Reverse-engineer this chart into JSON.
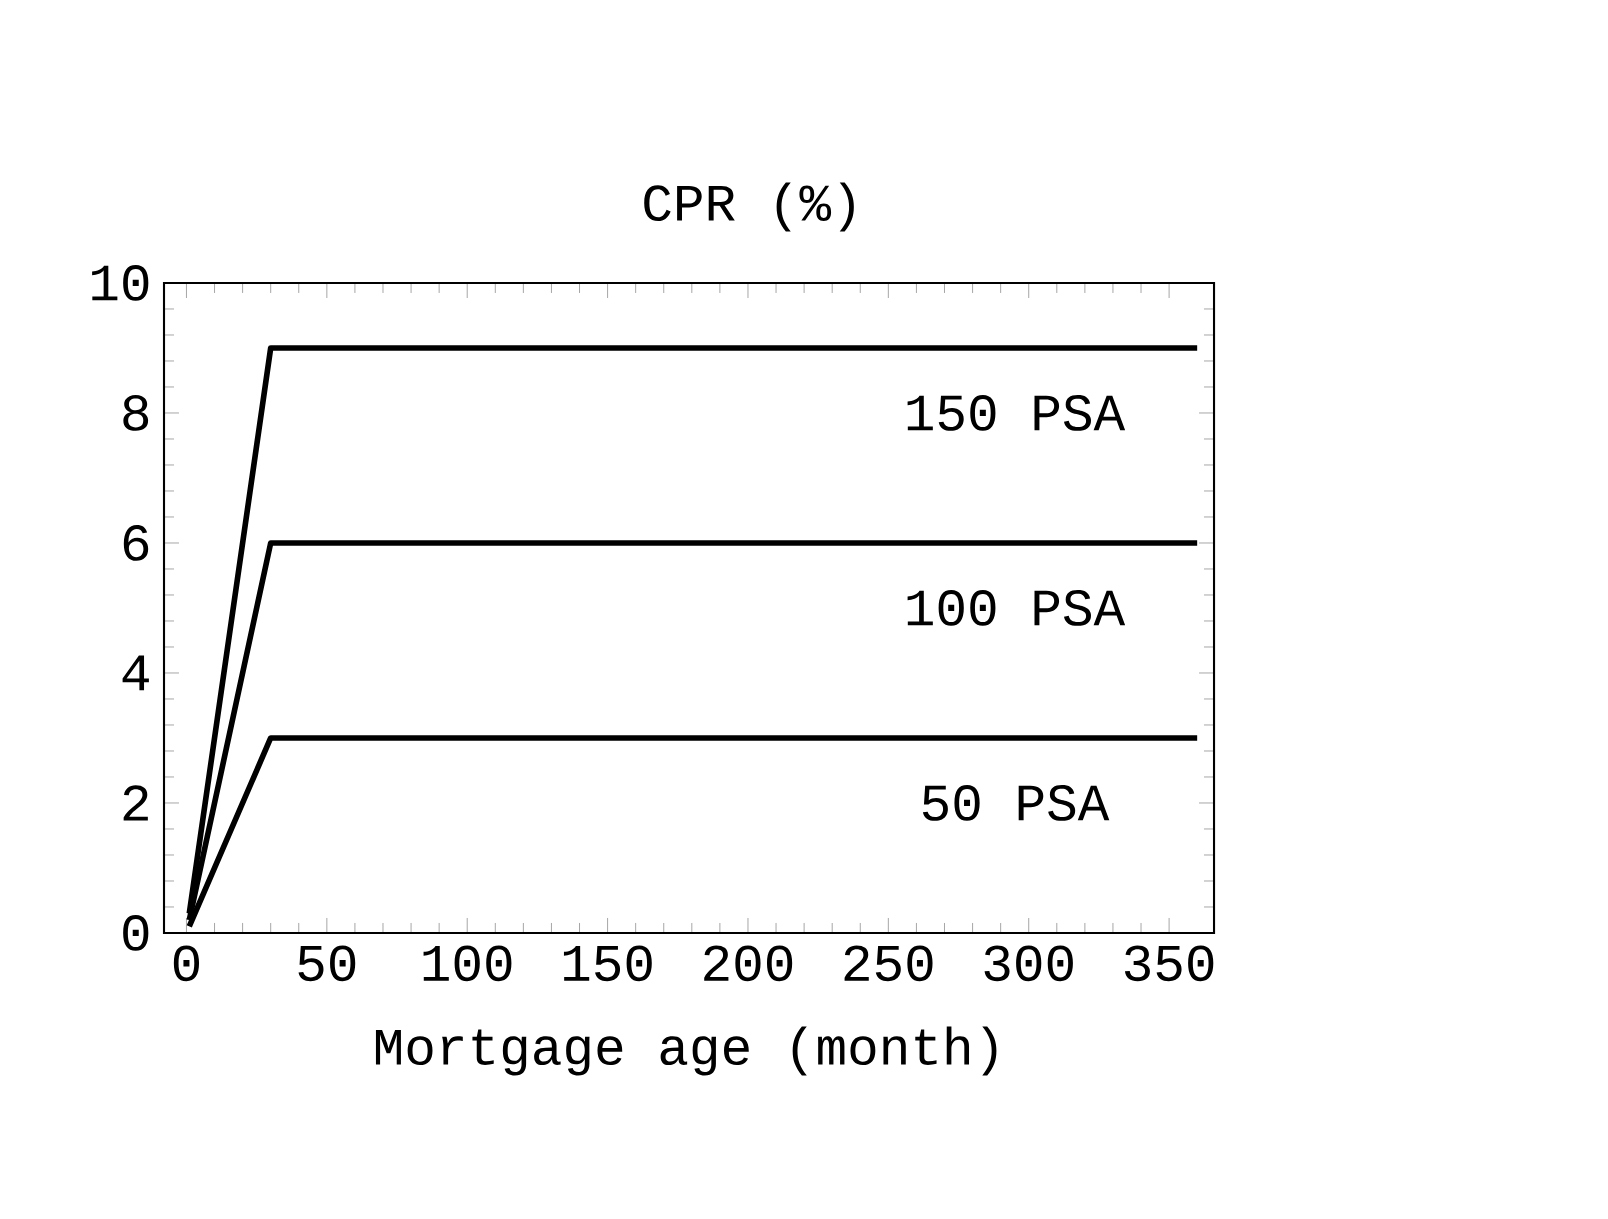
{
  "chart_data": {
    "type": "line",
    "xlabel": "Mortgage age (month)",
    "ylabel": "CPR (%)",
    "xlim": [
      -8,
      366
    ],
    "ylim": [
      0,
      10
    ],
    "xticks": [
      0,
      50,
      100,
      150,
      200,
      250,
      300,
      350
    ],
    "yticks": [
      0,
      2,
      4,
      6,
      8,
      10
    ],
    "grid": false,
    "legend": false,
    "marker": "none",
    "line_style": "solid",
    "series": [
      {
        "name": "150 PSA",
        "color": "#000000",
        "x": [
          1,
          30,
          360
        ],
        "values": [
          0.3,
          9,
          9
        ]
      },
      {
        "name": "100 PSA",
        "color": "#000000",
        "x": [
          1,
          30,
          360
        ],
        "values": [
          0.2,
          6,
          6
        ]
      },
      {
        "name": "50 PSA",
        "color": "#000000",
        "x": [
          1,
          30,
          360
        ],
        "values": [
          0.1,
          3,
          3
        ]
      }
    ]
  }
}
